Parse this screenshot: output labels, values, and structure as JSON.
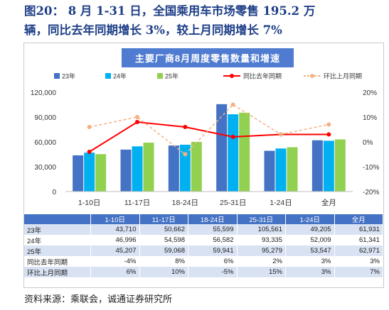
{
  "report": {
    "title_line1": "图20：  8 月 1-31 日，全国乘用车市场零售 195.2 万",
    "title_line2": "辆，同比去年同期增长 3%，较上月同期增长 7%",
    "source": "资料来源：乘联会，诚通证券研究所"
  },
  "chart_data": {
    "type": "bar",
    "title": "主要厂商8月周度零售数量和增速",
    "categories": [
      "1-10日",
      "11-17日",
      "18-24日",
      "25-31日",
      "1-24日",
      "全月"
    ],
    "series": [
      {
        "name": "23年",
        "kind": "bar",
        "axis": "left",
        "color": "#4472c4",
        "values": [
          43710,
          50662,
          55599,
          105561,
          49205,
          61931
        ]
      },
      {
        "name": "24年",
        "kind": "bar",
        "axis": "left",
        "color": "#00b0f0",
        "values": [
          46996,
          54598,
          56582,
          93335,
          52009,
          61341
        ]
      },
      {
        "name": "25年",
        "kind": "bar",
        "axis": "left",
        "color": "#92d050",
        "values": [
          45207,
          59068,
          59941,
          95279,
          53547,
          62971
        ]
      },
      {
        "name": "同比去年同期",
        "kind": "line",
        "axis": "right",
        "color": "#ff0000",
        "values": [
          -4,
          8,
          6,
          2,
          3,
          3
        ]
      },
      {
        "name": "环比上月同期",
        "kind": "line",
        "axis": "right",
        "color": "#f4b183",
        "values": [
          6,
          10,
          -5,
          15,
          3,
          7
        ]
      }
    ],
    "y_left": {
      "min": 0,
      "max": 120000,
      "ticks": [
        "0",
        "30,000",
        "60,000",
        "90,000",
        "120,000"
      ]
    },
    "y_right": {
      "min": -20,
      "max": 20,
      "ticks": [
        "-20%",
        "-10%",
        "0%",
        "10%",
        "20%"
      ]
    },
    "legend_position": "top",
    "grid": false
  },
  "table": {
    "headers": [
      "",
      "1-10日",
      "11-17日",
      "18-24日",
      "25-31日",
      "1-24日",
      "全月"
    ],
    "rows": [
      {
        "label": "23年",
        "cells": [
          "43,710",
          "50,662",
          "55,599",
          "105,561",
          "49,205",
          "61,931"
        ]
      },
      {
        "label": "24年",
        "cells": [
          "46,996",
          "54,598",
          "56,582",
          "93,335",
          "52,009",
          "61,341"
        ]
      },
      {
        "label": "25年",
        "cells": [
          "45,207",
          "59,068",
          "59,941",
          "95,279",
          "53,547",
          "62,971"
        ]
      },
      {
        "label": "同比去年同期",
        "cells": [
          "-4%",
          "8%",
          "6%",
          "2%",
          "3%",
          "3%"
        ]
      },
      {
        "label": "环比上月同期",
        "cells": [
          "6%",
          "10%",
          "-5%",
          "15%",
          "3%",
          "7%"
        ]
      }
    ]
  }
}
